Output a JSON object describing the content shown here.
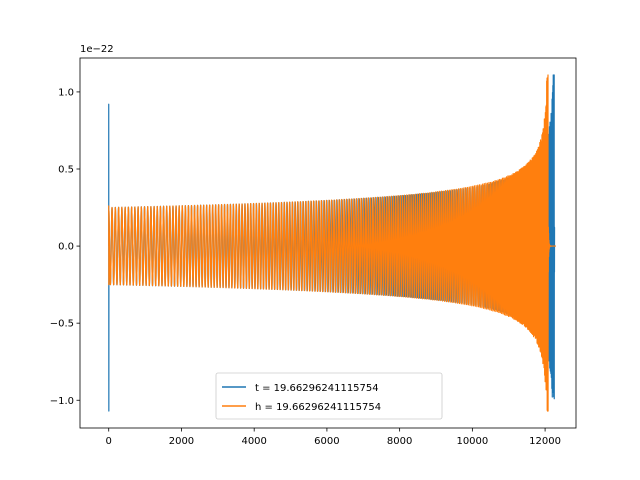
{
  "chart_data": {
    "type": "line",
    "title": "",
    "xlabel": "",
    "ylabel": "",
    "y_offset_label": "1e−22",
    "xlim": [
      -790,
      12850
    ],
    "ylim": [
      -1.18,
      1.22
    ],
    "x_ticks": [
      0,
      2000,
      4000,
      6000,
      8000,
      10000,
      12000
    ],
    "x_tick_labels": [
      "0",
      "2000",
      "4000",
      "6000",
      "8000",
      "10000",
      "12000"
    ],
    "y_ticks": [
      -1.0,
      -0.5,
      0.0,
      0.5,
      1.0
    ],
    "y_tick_labels": [
      "−1.0",
      "−0.5",
      "0.0",
      "0.5",
      "1.0"
    ],
    "grid": false,
    "legend_position": "bottom-center",
    "series": [
      {
        "name": "t = 19.66296241115754",
        "color": "#1f77b4",
        "kind": "chirp",
        "x_start": 0,
        "x_merger": 12250,
        "x_end": 12260,
        "start_spike": [
          0.92,
          -1.07
        ],
        "base_amplitude": 0.25,
        "peak": [
          1.11,
          -0.99
        ]
      },
      {
        "name": "h = 19.66296241115754",
        "color": "#ff7f0e",
        "kind": "chirp",
        "x_start": 0,
        "x_merger": 12080,
        "x_end": 12300,
        "start_spike": [
          0.26,
          -0.25
        ],
        "base_amplitude": 0.25,
        "peak": [
          1.11,
          -1.07
        ]
      }
    ]
  }
}
